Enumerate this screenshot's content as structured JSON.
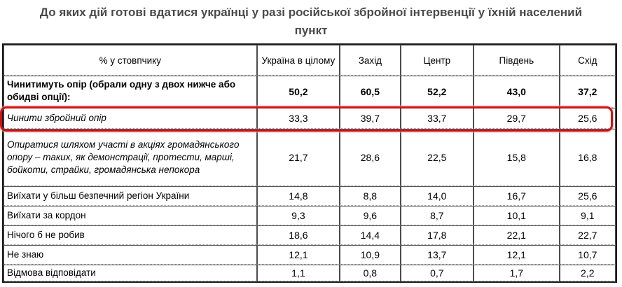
{
  "title": "До яких дій готові вдатися українці у разі російської збройної інтервенції у їхній населений пункт",
  "table": {
    "header": [
      "% у стовпчику",
      "Україна в цілому",
      "Захід",
      "Центр",
      "Південь",
      "Схід"
    ],
    "rows": [
      {
        "label": "Чинитимуть опір (обрали одну з двох нижче або обидві опції):",
        "values": [
          "50,2",
          "60,5",
          "52,2",
          "43,0",
          "37,2"
        ],
        "style": "bold",
        "highlighted": false
      },
      {
        "label": "Чинити збройний опір",
        "values": [
          "33,3",
          "39,7",
          "33,7",
          "29,7",
          "25,6"
        ],
        "style": "italic",
        "highlighted": true
      },
      {
        "label": "Опиратися шляхом участі в акціях громадянського опору – таких, як демонстрації, протести, марші, бойкоти, страйки, громадянська непокора",
        "values": [
          "21,7",
          "28,6",
          "22,5",
          "15,8",
          "16,8"
        ],
        "style": "italic",
        "highlighted": false
      },
      {
        "label": "Виїхати у більш безпечний регіон України",
        "values": [
          "14,8",
          "8,8",
          "14,0",
          "16,7",
          "25,6"
        ],
        "style": "normal",
        "highlighted": false
      },
      {
        "label": "Виїхати за кордон",
        "values": [
          "9,3",
          "9,6",
          "8,7",
          "10,1",
          "9,1"
        ],
        "style": "normal",
        "highlighted": false
      },
      {
        "label": "Нічого б не робив",
        "values": [
          "18,6",
          "14,4",
          "17,8",
          "22,1",
          "22,7"
        ],
        "style": "normal",
        "highlighted": false
      },
      {
        "label": "Не знаю",
        "values": [
          "12,1",
          "10,9",
          "13,7",
          "12,1",
          "10,7"
        ],
        "style": "normal",
        "highlighted": false
      },
      {
        "label": "Відмова відповідати",
        "values": [
          "1,1",
          "0,8",
          "0,7",
          "1,7",
          "2,2"
        ],
        "style": "normal",
        "highlighted": false
      }
    ]
  },
  "highlight_color": "#cc1414",
  "chart_data": {
    "type": "table",
    "title": "До яких дій готові вдатися українці у разі російської збройної інтервенції у їхній населений пункт",
    "unit": "% у стовпчику",
    "columns": [
      "Україна в цілому",
      "Захід",
      "Центр",
      "Південь",
      "Схід"
    ],
    "rows": [
      {
        "label": "Чинитимуть опір (обрали одну з двох нижче або обидві опції):",
        "values": [
          50.2,
          60.5,
          52.2,
          43.0,
          37.2
        ]
      },
      {
        "label": "Чинити збройний опір",
        "values": [
          33.3,
          39.7,
          33.7,
          29.7,
          25.6
        ]
      },
      {
        "label": "Опиратися шляхом участі в акціях громадянського опору – таких, як демонстрації, протести, марші, бойкоти, страйки, громадянська непокора",
        "values": [
          21.7,
          28.6,
          22.5,
          15.8,
          16.8
        ]
      },
      {
        "label": "Виїхати у більш безпечний регіон України",
        "values": [
          14.8,
          8.8,
          14.0,
          16.7,
          25.6
        ]
      },
      {
        "label": "Виїхати за кордон",
        "values": [
          9.3,
          9.6,
          8.7,
          10.1,
          9.1
        ]
      },
      {
        "label": "Нічого б не робив",
        "values": [
          18.6,
          14.4,
          17.8,
          22.1,
          22.7
        ]
      },
      {
        "label": "Не знаю",
        "values": [
          12.1,
          10.9,
          13.7,
          12.1,
          10.7
        ]
      },
      {
        "label": "Відмова відповідати",
        "values": [
          1.1,
          0.8,
          0.7,
          1.7,
          2.2
        ]
      }
    ],
    "highlighted_row": "Чинити збройний опір"
  }
}
